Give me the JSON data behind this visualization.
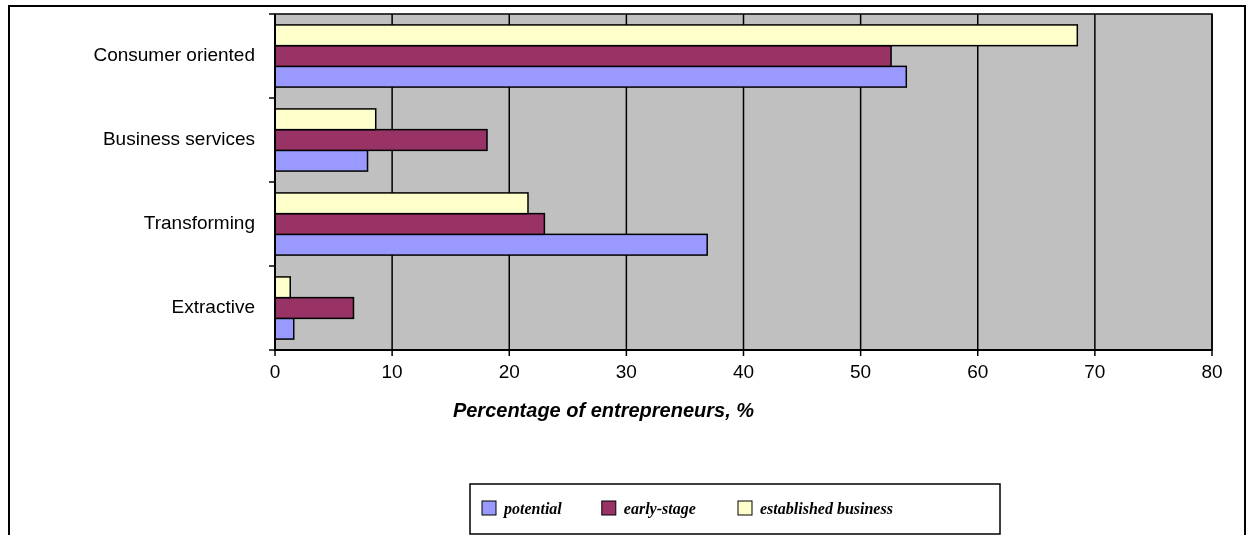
{
  "chart_data": {
    "type": "bar",
    "orientation": "horizontal",
    "categories": [
      "Consumer oriented",
      "Business services",
      "Transforming",
      "Extractive"
    ],
    "series": [
      {
        "name": "potential",
        "color": "#9999ff",
        "values": [
          53.9,
          7.9,
          36.9,
          1.6
        ]
      },
      {
        "name": "early-stage",
        "color": "#993366",
        "values": [
          52.6,
          18.1,
          23.0,
          6.7
        ]
      },
      {
        "name": "established business",
        "color": "#ffffcc",
        "values": [
          68.5,
          8.6,
          21.6,
          1.3
        ]
      }
    ],
    "xlabel": "Percentage of entrepreneurs, %",
    "xlim": [
      0,
      80
    ],
    "xticks": [
      0,
      10,
      20,
      30,
      40,
      50,
      60,
      70,
      80
    ],
    "grid": "x",
    "legend": "bottom"
  }
}
